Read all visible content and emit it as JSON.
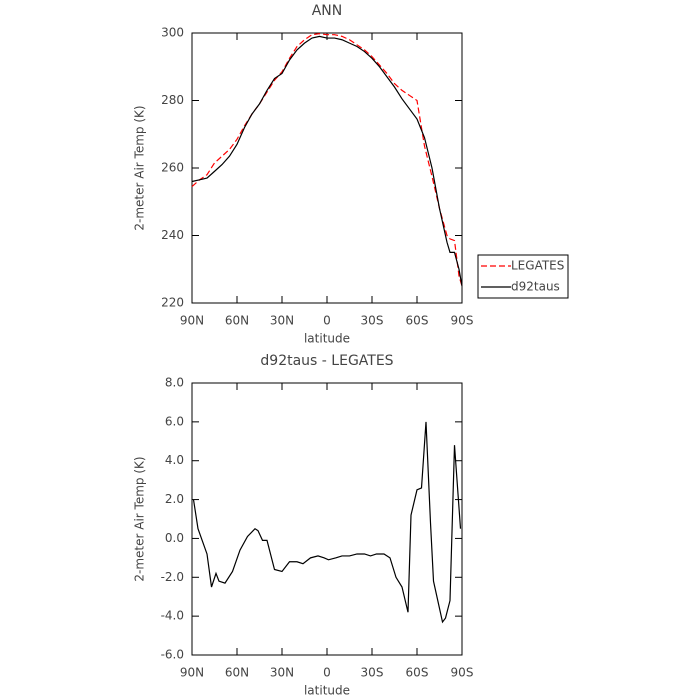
{
  "chart_data": [
    {
      "type": "line",
      "title": "ANN",
      "xlabel": "latitude",
      "ylabel": "2-meter Air Temp (K)",
      "x": [
        90,
        85,
        80,
        75,
        70,
        65,
        60,
        55,
        50,
        45,
        40,
        35,
        30,
        25,
        20,
        15,
        10,
        5,
        0,
        -5,
        -10,
        -15,
        -20,
        -25,
        -30,
        -35,
        -40,
        -45,
        -50,
        -55,
        -60,
        -65,
        -70,
        -75,
        -80,
        -82,
        -85,
        -88,
        -90
      ],
      "series": [
        {
          "name": "LEGATES",
          "color": "#ff0000",
          "linestyle": "dashed",
          "values": [
            254.5,
            256.5,
            258,
            261.5,
            263.5,
            265.5,
            268.5,
            272.5,
            276,
            279,
            282.5,
            286,
            288.5,
            292.5,
            296,
            298,
            299.5,
            299.8,
            299.5,
            299.5,
            299,
            298,
            296.5,
            295,
            293,
            290.5,
            288,
            285,
            283,
            281.5,
            280,
            266.5,
            257.5,
            248,
            240,
            239,
            238.5,
            228,
            225
          ]
        },
        {
          "name": "d92taus",
          "color": "#000000",
          "linestyle": "solid",
          "values": [
            256,
            256.5,
            257,
            259,
            261,
            263.5,
            267,
            272,
            276,
            279,
            283,
            286.5,
            288,
            292,
            295,
            297,
            298.5,
            299,
            298.5,
            298.5,
            298,
            297,
            296,
            294.5,
            292.5,
            290,
            287,
            284,
            280.5,
            277.5,
            274.5,
            269,
            260,
            248,
            238,
            235,
            235,
            230,
            225
          ]
        }
      ],
      "xlim": [
        90,
        -90
      ],
      "xticks": [
        {
          "value": 90,
          "label": "90N"
        },
        {
          "value": 60,
          "label": "60N"
        },
        {
          "value": 30,
          "label": "30N"
        },
        0,
        {
          "value": -30,
          "label": "30S"
        },
        {
          "value": -60,
          "label": "60S"
        },
        {
          "value": -90,
          "label": "90S"
        }
      ],
      "ylim": [
        220,
        300
      ],
      "yticks": [
        220,
        240,
        260,
        280,
        300
      ],
      "legend": "outside-right"
    },
    {
      "type": "line",
      "title": "d92taus - LEGATES",
      "xlabel": "latitude",
      "ylabel": "2-meter Air Temp (K)",
      "x": [
        89,
        86,
        80,
        77,
        74,
        72,
        68,
        63,
        58,
        53,
        48,
        46,
        43,
        40,
        35,
        30,
        25,
        20,
        16,
        11,
        6,
        2,
        -1,
        -6,
        -10,
        -15,
        -20,
        -25,
        -29,
        -33,
        -38,
        -42,
        -46,
        -50,
        -54,
        -56,
        -60,
        -63,
        -66,
        -69,
        -71,
        -77,
        -79,
        -82,
        -85,
        -89
      ],
      "values": [
        2.0,
        0.5,
        -0.8,
        -2.5,
        -1.8,
        -2.2,
        -2.3,
        -1.7,
        -0.6,
        0.1,
        0.5,
        0.4,
        -0.1,
        -0.1,
        -1.6,
        -1.7,
        -1.2,
        -1.2,
        -1.3,
        -1.0,
        -0.9,
        -1.0,
        -1.1,
        -1.0,
        -0.9,
        -0.9,
        -0.8,
        -0.8,
        -0.9,
        -0.8,
        -0.8,
        -1.0,
        -2.0,
        -2.5,
        -3.8,
        1.2,
        2.5,
        2.6,
        6.0,
        0.8,
        -2.2,
        -4.3,
        -4.1,
        -3.2,
        4.8,
        0.5
      ],
      "color": "#000000",
      "xlim": [
        90,
        -90
      ],
      "xticks": [
        {
          "value": 90,
          "label": "90N"
        },
        {
          "value": 60,
          "label": "60N"
        },
        {
          "value": 30,
          "label": "30N"
        },
        0,
        {
          "value": -30,
          "label": "30S"
        },
        {
          "value": -60,
          "label": "60S"
        },
        {
          "value": -90,
          "label": "90S"
        }
      ],
      "ylim": [
        -6,
        8
      ],
      "yticks": [
        {
          "value": -6,
          "label": "-6.0"
        },
        {
          "value": -4,
          "label": "-4.0"
        },
        {
          "value": -2,
          "label": "-2.0"
        },
        {
          "value": 0,
          "label": "0.0"
        },
        {
          "value": 2,
          "label": "2.0"
        },
        {
          "value": 4,
          "label": "4.0"
        },
        {
          "value": 6,
          "label": "6.0"
        },
        {
          "value": 8,
          "label": "8.0"
        }
      ]
    }
  ]
}
